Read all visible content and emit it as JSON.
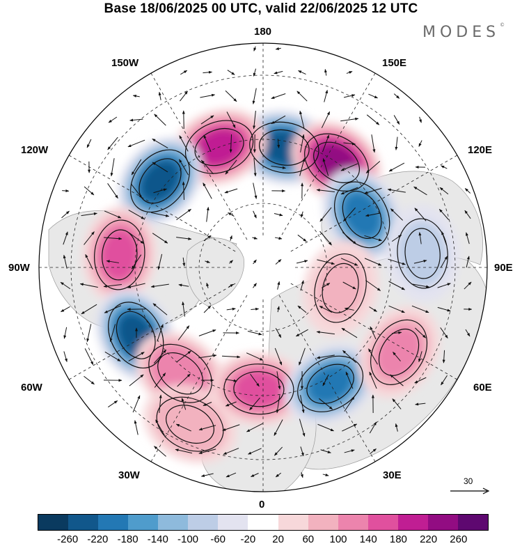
{
  "title": "Base 18/06/2025 00 UTC, valid 22/06/2025 12 UTC",
  "logo": {
    "text": "MODES",
    "mark": "©"
  },
  "longitude_labels": {
    "top": "180",
    "bottom": "0",
    "left": "90W",
    "right": "90E",
    "upper_left_1": "150W",
    "upper_left_2": "120W",
    "upper_right_1": "150E",
    "upper_right_2": "120E",
    "lower_left_1": "60W",
    "lower_left_2": "30W",
    "lower_right_1": "60E",
    "lower_right_2": "30E"
  },
  "wind_scale": {
    "value": "30"
  },
  "colorbar": {
    "colors": [
      "#0a3a5f",
      "#11578b",
      "#2378b4",
      "#4f9ccc",
      "#8ebadc",
      "#bdcde6",
      "#e3e3f0",
      "#ffffff",
      "#f7d8da",
      "#f2b2bf",
      "#ec84ad",
      "#e0509e",
      "#c01e93",
      "#920c82",
      "#5e0870"
    ],
    "tick_labels": [
      "-260",
      "-220",
      "-180",
      "-140",
      "-100",
      "-60",
      "-20",
      "20",
      "60",
      "100",
      "140",
      "180",
      "220",
      "260"
    ]
  },
  "anomalies": [
    {
      "lon": 170,
      "lat": 52,
      "value": -230
    },
    {
      "lon": -160,
      "lat": 50,
      "value": 200
    },
    {
      "lon": 145,
      "lat": 50,
      "value": 240
    },
    {
      "lon": 118,
      "lat": 55,
      "value": -200
    },
    {
      "lon": -130,
      "lat": 48,
      "value": -230
    },
    {
      "lon": -95,
      "lat": 45,
      "value": 160
    },
    {
      "lon": 95,
      "lat": 40,
      "value": -90
    },
    {
      "lon": 75,
      "lat": 65,
      "value": 90
    },
    {
      "lon": -62,
      "lat": 45,
      "value": -220
    },
    {
      "lon": -38,
      "lat": 48,
      "value": 140
    },
    {
      "lon": -25,
      "lat": 36,
      "value": 100
    },
    {
      "lon": -2,
      "lat": 52,
      "value": 160
    },
    {
      "lon": 30,
      "lat": 48,
      "value": -180
    },
    {
      "lon": 58,
      "lat": 40,
      "value": 110
    }
  ]
}
